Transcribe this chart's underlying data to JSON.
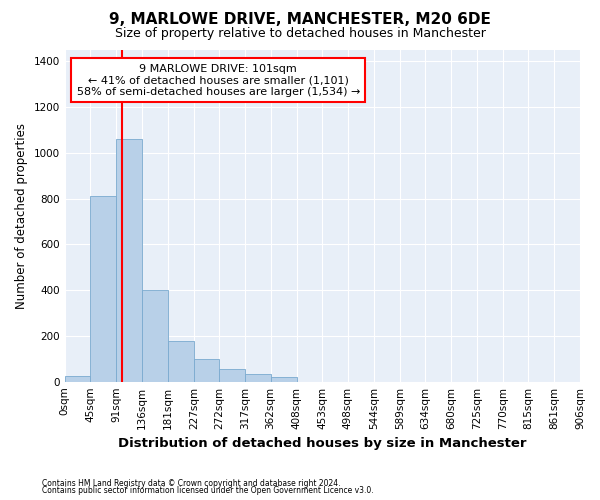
{
  "title": "9, MARLOWE DRIVE, MANCHESTER, M20 6DE",
  "subtitle": "Size of property relative to detached houses in Manchester",
  "xlabel": "Distribution of detached houses by size in Manchester",
  "ylabel": "Number of detached properties",
  "footnote1": "Contains HM Land Registry data © Crown copyright and database right 2024.",
  "footnote2": "Contains public sector information licensed under the Open Government Licence v3.0.",
  "annotation_line1": "9 MARLOWE DRIVE: 101sqm",
  "annotation_line2": "← 41% of detached houses are smaller (1,101)",
  "annotation_line3": "58% of semi-detached houses are larger (1,534) →",
  "bar_color": "#b8d0e8",
  "bar_edge_color": "#7aaacf",
  "red_line_x": 101,
  "ylim": [
    0,
    1450
  ],
  "yticks": [
    0,
    200,
    400,
    600,
    800,
    1000,
    1200,
    1400
  ],
  "bin_edges": [
    0,
    45,
    91,
    136,
    181,
    227,
    272,
    317,
    362,
    408,
    453,
    498,
    544,
    589,
    634,
    680,
    725,
    770,
    815,
    861,
    906
  ],
  "bar_heights": [
    25,
    810,
    1060,
    400,
    180,
    100,
    55,
    35,
    20,
    0,
    0,
    0,
    0,
    0,
    0,
    0,
    0,
    0,
    0,
    0
  ],
  "tick_labels": [
    "0sqm",
    "45sqm",
    "91sqm",
    "136sqm",
    "181sqm",
    "227sqm",
    "272sqm",
    "317sqm",
    "362sqm",
    "408sqm",
    "453sqm",
    "498sqm",
    "544sqm",
    "589sqm",
    "634sqm",
    "680sqm",
    "725sqm",
    "770sqm",
    "815sqm",
    "861sqm",
    "906sqm"
  ],
  "background_color": "#e8eff8",
  "title_fontsize": 11,
  "subtitle_fontsize": 9,
  "ylabel_fontsize": 8.5,
  "xlabel_fontsize": 9.5,
  "tick_fontsize": 7.5
}
